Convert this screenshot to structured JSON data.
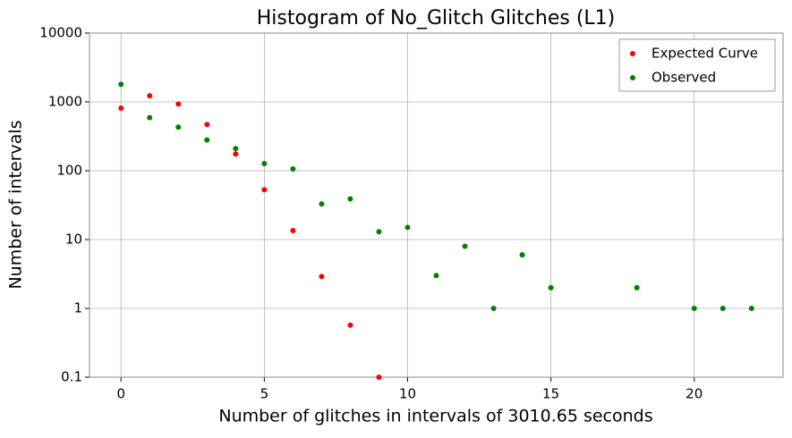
{
  "chart_data": {
    "type": "scatter",
    "title": "Histogram of No_Glitch Glitches (L1)",
    "x_label": "Number of glitches in intervals of 3010.65 seconds",
    "y_label": "Number of intervals",
    "series": [
      {
        "name": "Expected Curve",
        "color": "#ff0000",
        "x": [
          0,
          1,
          2,
          3,
          4,
          5,
          6,
          7,
          8,
          9
        ],
        "values": [
          810,
          1230,
          930,
          470,
          175,
          53,
          13.5,
          2.9,
          0.57,
          0.1
        ]
      },
      {
        "name": "Observed",
        "color": "#008000",
        "x": [
          0,
          1,
          2,
          3,
          4,
          5,
          6,
          7,
          8,
          9,
          10,
          11,
          12,
          13,
          14,
          15,
          18,
          20,
          21,
          22
        ],
        "values": [
          1800,
          590,
          430,
          280,
          210,
          127,
          106,
          33,
          39,
          13,
          15,
          3,
          8,
          1,
          6,
          2,
          2,
          1,
          1,
          1
        ]
      }
    ],
    "xlim": [
      -1.1,
      23.1
    ],
    "xticks": [
      0,
      5,
      10,
      15,
      20
    ],
    "ylim": [
      0.1,
      10000
    ],
    "yticks": [
      0.1,
      1,
      10,
      100,
      1000,
      10000
    ],
    "y_scale": "log",
    "grid": true,
    "legend": "upper right"
  }
}
